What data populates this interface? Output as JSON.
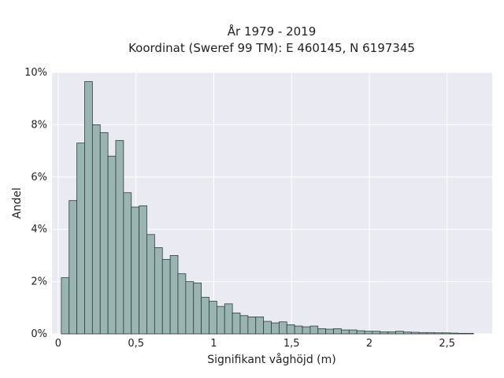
{
  "chart_data": {
    "type": "bar",
    "title_line1": "År 1979 - 2019",
    "title_line2": "Koordinat (Sweref 99 TM): E 460145, N 6197345",
    "xlabel": "Signifikant våghöjd (m)",
    "ylabel": "Andel",
    "xlim": [
      -0.04,
      2.79
    ],
    "ylim": [
      0,
      10
    ],
    "x_ticks": [
      0,
      0.5,
      1,
      1.5,
      2,
      2.5
    ],
    "x_tick_labels": [
      "0",
      "0,5",
      "1",
      "1,5",
      "2",
      "2,5"
    ],
    "y_ticks": [
      0,
      2,
      4,
      6,
      8,
      10
    ],
    "y_tick_labels": [
      "0%",
      "2%",
      "4%",
      "6%",
      "8%",
      "10%"
    ],
    "bin_width": 0.05,
    "bin_starts": [
      0.02,
      0.07,
      0.12,
      0.17,
      0.22,
      0.27,
      0.32,
      0.37,
      0.42,
      0.47,
      0.52,
      0.57,
      0.62,
      0.67,
      0.72,
      0.77,
      0.82,
      0.87,
      0.92,
      0.97,
      1.02,
      1.07,
      1.12,
      1.17,
      1.22,
      1.27,
      1.32,
      1.37,
      1.42,
      1.47,
      1.52,
      1.57,
      1.62,
      1.67,
      1.72,
      1.77,
      1.82,
      1.87,
      1.92,
      1.97,
      2.02,
      2.07,
      2.12,
      2.17,
      2.22,
      2.27,
      2.32,
      2.37,
      2.42,
      2.47,
      2.52,
      2.57,
      2.62
    ],
    "values": [
      2.15,
      5.1,
      7.3,
      9.65,
      8.0,
      7.7,
      6.8,
      7.4,
      5.4,
      4.85,
      4.9,
      3.8,
      3.3,
      2.85,
      3.0,
      2.3,
      2.0,
      1.95,
      1.4,
      1.25,
      1.05,
      1.15,
      0.8,
      0.7,
      0.65,
      0.65,
      0.48,
      0.42,
      0.46,
      0.35,
      0.3,
      0.27,
      0.3,
      0.2,
      0.18,
      0.2,
      0.15,
      0.15,
      0.12,
      0.1,
      0.1,
      0.08,
      0.08,
      0.1,
      0.07,
      0.06,
      0.05,
      0.05,
      0.04,
      0.04,
      0.03,
      0.02,
      0.02
    ],
    "grid": true,
    "colors": {
      "background": "#eaeaf2",
      "bar_fill": "#99b4b1",
      "bar_edge": "#2f3d3c"
    }
  }
}
